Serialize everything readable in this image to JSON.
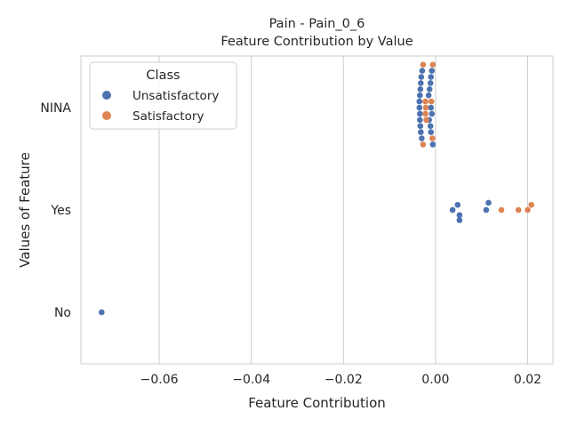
{
  "chart_data": {
    "type": "scatter",
    "title": "Pain - Pain_0_6",
    "subtitle": "Feature Contribution by Value",
    "xlabel": "Feature Contribution",
    "ylabel": "Values of Feature",
    "xlim": [
      -0.077,
      0.0255
    ],
    "x_ticks": [
      -0.06,
      -0.04,
      -0.02,
      0.0,
      0.02
    ],
    "x_tick_labels": [
      "−0.06",
      "−0.04",
      "−0.02",
      "0.00",
      "0.02"
    ],
    "categories": [
      "NINA",
      "Yes",
      "No"
    ],
    "grid": "x",
    "legend": {
      "title": "Class",
      "placement": "top-left",
      "entries": [
        {
          "label": "Unsatisfactory",
          "color": "#4c72b0"
        },
        {
          "label": "Satisfactory",
          "color": "#dd8452"
        }
      ]
    },
    "series": [
      {
        "name": "Unsatisfactory",
        "color": "#4c72b0",
        "points": [
          {
            "category": "NINA",
            "x": -0.0029,
            "offset": -0.36
          },
          {
            "category": "NINA",
            "x": -0.0008,
            "offset": -0.36
          },
          {
            "category": "NINA",
            "x": -0.0031,
            "offset": -0.3
          },
          {
            "category": "NINA",
            "x": -0.001,
            "offset": -0.3
          },
          {
            "category": "NINA",
            "x": -0.0032,
            "offset": -0.24
          },
          {
            "category": "NINA",
            "x": -0.0011,
            "offset": -0.24
          },
          {
            "category": "NINA",
            "x": -0.0033,
            "offset": -0.18
          },
          {
            "category": "NINA",
            "x": -0.0013,
            "offset": -0.18
          },
          {
            "category": "NINA",
            "x": -0.0034,
            "offset": -0.12
          },
          {
            "category": "NINA",
            "x": -0.0015,
            "offset": -0.12
          },
          {
            "category": "NINA",
            "x": -0.0035,
            "offset": -0.06
          },
          {
            "category": "NINA",
            "x": -0.0035,
            "offset": 0.0
          },
          {
            "category": "NINA",
            "x": -0.001,
            "offset": 0.0
          },
          {
            "category": "NINA",
            "x": -0.0034,
            "offset": 0.06
          },
          {
            "category": "NINA",
            "x": -0.0008,
            "offset": 0.06
          },
          {
            "category": "NINA",
            "x": -0.0034,
            "offset": 0.12
          },
          {
            "category": "NINA",
            "x": -0.0014,
            "offset": 0.12
          },
          {
            "category": "NINA",
            "x": -0.0033,
            "offset": 0.18
          },
          {
            "category": "NINA",
            "x": -0.0011,
            "offset": 0.18
          },
          {
            "category": "NINA",
            "x": -0.0032,
            "offset": 0.24
          },
          {
            "category": "NINA",
            "x": -0.001,
            "offset": 0.24
          },
          {
            "category": "NINA",
            "x": -0.003,
            "offset": 0.3
          },
          {
            "category": "NINA",
            "x": -0.0006,
            "offset": 0.36
          },
          {
            "category": "Yes",
            "x": 0.0048,
            "offset": -0.05
          },
          {
            "category": "Yes",
            "x": 0.0115,
            "offset": -0.07
          },
          {
            "category": "Yes",
            "x": 0.0037,
            "offset": 0.0
          },
          {
            "category": "Yes",
            "x": 0.011,
            "offset": 0.0
          },
          {
            "category": "Yes",
            "x": 0.0052,
            "offset": 0.05
          },
          {
            "category": "Yes",
            "x": 0.0052,
            "offset": 0.1
          },
          {
            "category": "No",
            "x": -0.0725,
            "offset": 0.0
          }
        ]
      },
      {
        "name": "Satisfactory",
        "color": "#dd8452",
        "points": [
          {
            "category": "NINA",
            "x": -0.0027,
            "offset": -0.42
          },
          {
            "category": "NINA",
            "x": -0.0006,
            "offset": -0.42
          },
          {
            "category": "NINA",
            "x": -0.0022,
            "offset": -0.06
          },
          {
            "category": "NINA",
            "x": -0.0009,
            "offset": -0.06
          },
          {
            "category": "NINA",
            "x": -0.0021,
            "offset": 0.0
          },
          {
            "category": "NINA",
            "x": -0.0022,
            "offset": 0.06
          },
          {
            "category": "NINA",
            "x": -0.002,
            "offset": 0.12
          },
          {
            "category": "NINA",
            "x": -0.0007,
            "offset": 0.3
          },
          {
            "category": "NINA",
            "x": -0.0027,
            "offset": 0.36
          },
          {
            "category": "Yes",
            "x": 0.0208,
            "offset": -0.05
          },
          {
            "category": "Yes",
            "x": 0.0143,
            "offset": 0.0
          },
          {
            "category": "Yes",
            "x": 0.018,
            "offset": 0.0
          },
          {
            "category": "Yes",
            "x": 0.02,
            "offset": 0.0
          }
        ]
      }
    ]
  }
}
